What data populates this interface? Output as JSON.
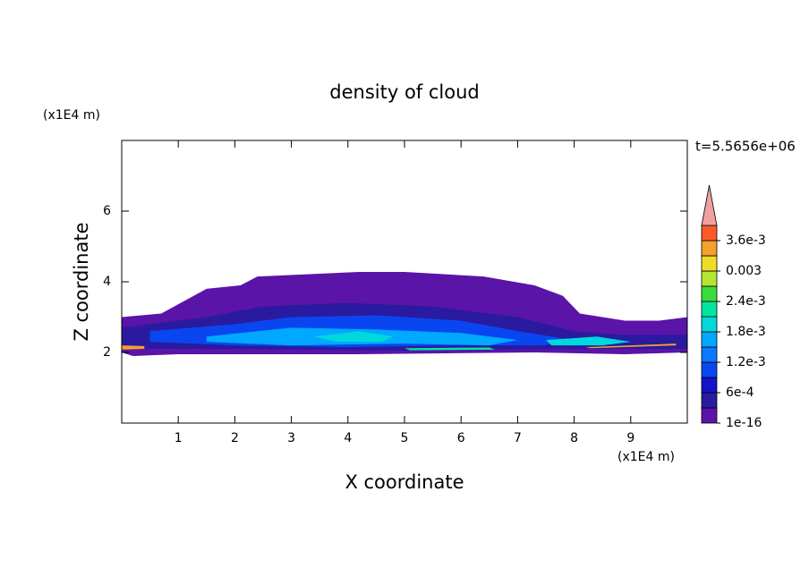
{
  "chart_data": {
    "type": "contour",
    "title": "density of cloud",
    "x_label": "X coordinate",
    "y_label": "Z coordinate",
    "x_unit": "(x1E4 m)",
    "y_unit": "(x1E4 m)",
    "annotation": "t=5.5656e+06",
    "xlim": [
      0,
      10
    ],
    "xticks": [
      1,
      2,
      3,
      4,
      5,
      6,
      7,
      8,
      9
    ],
    "ylim": [
      0,
      8
    ],
    "yticks": [
      2,
      4,
      6
    ],
    "clevels": [
      1e-16,
      0.0003,
      0.0006,
      0.0009,
      0.0012,
      0.0015,
      0.0018,
      0.0021,
      0.0024,
      0.0027,
      0.003,
      0.0033,
      0.0036,
      0.0039
    ],
    "colors": [
      "#5a14a8",
      "#2a1aa0",
      "#1414c8",
      "#0a46f0",
      "#0a78ff",
      "#00a8ff",
      "#00d8dc",
      "#00e6a0",
      "#3cdc3c",
      "#b4e632",
      "#f0dc28",
      "#f5a028",
      "#fa5a28"
    ],
    "over_color": "#f0a0a0",
    "cticks": [
      1e-16,
      {
        "value": 0.0006,
        "label": "6e-4"
      },
      {
        "value": 0.0012,
        "label": "1.2e-3"
      },
      {
        "value": 0.0018,
        "label": "1.8e-3"
      },
      {
        "value": 0.0024,
        "label": "2.4e-3"
      },
      0.003,
      {
        "value": 0.0036,
        "label": "3.6e-3"
      }
    ],
    "regions": [
      {
        "level": 1e-16,
        "x": [
          0,
          0.7,
          1.5,
          2.1,
          2.4,
          4.2,
          5.0,
          6.4,
          7.3,
          7.8,
          8.1,
          8.9,
          9.5,
          10,
          10,
          8.9,
          7.3,
          4.2,
          1.0,
          0.2,
          0
        ],
        "y": [
          3.0,
          3.1,
          3.8,
          3.9,
          4.15,
          4.28,
          4.28,
          4.15,
          3.9,
          3.6,
          3.1,
          2.9,
          2.9,
          3.0,
          2.0,
          1.95,
          2.0,
          1.95,
          1.95,
          1.9,
          2.0
        ]
      },
      {
        "level": 0.0003,
        "x": [
          0,
          1.5,
          2.5,
          4.0,
          5.5,
          7.0,
          8.0,
          8.8,
          10,
          10,
          8,
          5,
          2,
          0
        ],
        "y": [
          2.7,
          3.0,
          3.3,
          3.4,
          3.3,
          3.0,
          2.6,
          2.5,
          2.5,
          2.1,
          2.1,
          2.05,
          2.1,
          2.1
        ]
      },
      {
        "level": 0.0009,
        "x": [
          0.5,
          2,
          3,
          4.5,
          6,
          7,
          7.8,
          7.5,
          6,
          4,
          2,
          0.5
        ],
        "y": [
          2.6,
          2.8,
          3.0,
          3.05,
          2.9,
          2.6,
          2.4,
          2.2,
          2.2,
          2.15,
          2.2,
          2.3
        ]
      },
      {
        "level": 0.0015,
        "x": [
          1.5,
          3,
          4.5,
          6,
          7,
          6.5,
          5,
          3,
          1.5
        ],
        "y": [
          2.45,
          2.7,
          2.65,
          2.55,
          2.35,
          2.2,
          2.25,
          2.2,
          2.3
        ]
      },
      {
        "level": 0.0019,
        "x": [
          3.4,
          4.2,
          4.8,
          4.6,
          3.8
        ],
        "y": [
          2.45,
          2.6,
          2.45,
          2.3,
          2.3
        ]
      },
      {
        "level": 0.0019,
        "x": [
          7.5,
          8.4,
          9.0,
          8.5,
          7.6
        ],
        "y": [
          2.35,
          2.45,
          2.3,
          2.2,
          2.2
        ]
      },
      {
        "level": 0.0022,
        "x": [
          5,
          6.5,
          6.6,
          5.1
        ],
        "y": [
          2.12,
          2.14,
          2.08,
          2.06
        ]
      },
      {
        "level": 0.0033,
        "x": [
          8.2,
          9.8,
          9.8,
          8.3
        ],
        "y": [
          2.15,
          2.25,
          2.2,
          2.12
        ]
      },
      {
        "level": 0.0033,
        "x": [
          0,
          0.4,
          0.4,
          0
        ],
        "y": [
          2.2,
          2.18,
          2.1,
          2.08
        ]
      }
    ]
  }
}
